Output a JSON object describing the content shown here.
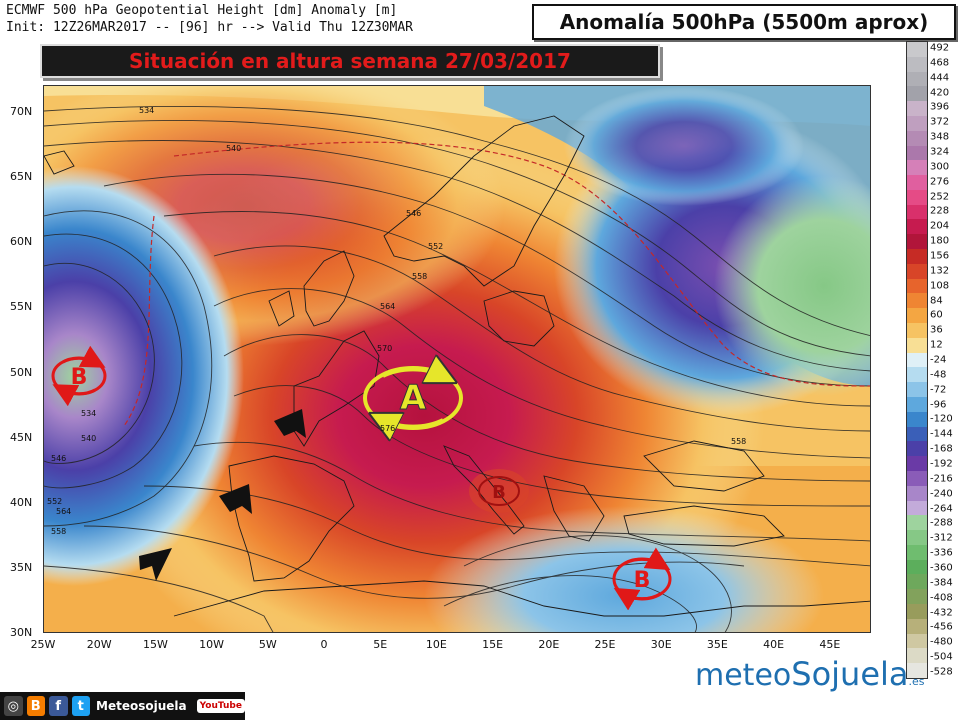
{
  "header": {
    "line1": "ECMWF 500 hPa Geopotential Height [dm] Anomaly [m]",
    "line2": "Init: 12Z26MAR2017 -- [96] hr --> Valid Thu 12Z30MAR"
  },
  "title": "Anomalía 500hPa (5500m aprox)",
  "subtitle": "Situación en altura semana 27/03/2017",
  "map": {
    "lat_labels": [
      "70N",
      "65N",
      "60N",
      "55N",
      "50N",
      "45N",
      "40N",
      "35N",
      "30N"
    ],
    "lon_labels": [
      "25W",
      "20W",
      "15W",
      "10W",
      "5W",
      "0",
      "5E",
      "10E",
      "15E",
      "20E",
      "25E",
      "30E",
      "35E",
      "40E",
      "45E"
    ],
    "contour_labels": [
      "534",
      "540",
      "546",
      "552",
      "558",
      "564",
      "570",
      "576",
      "534",
      "540",
      "546",
      "552",
      "558",
      "564",
      "558"
    ],
    "systems": [
      {
        "label": "A",
        "kind": "high"
      },
      {
        "label": "B",
        "kind": "low-atlantic"
      },
      {
        "label": "B",
        "kind": "low-italy"
      },
      {
        "label": "B",
        "kind": "low-east-med"
      }
    ]
  },
  "colorbar": {
    "labels": [
      "492",
      "468",
      "444",
      "420",
      "396",
      "372",
      "348",
      "324",
      "300",
      "276",
      "252",
      "228",
      "204",
      "180",
      "156",
      "132",
      "108",
      "84",
      "60",
      "36",
      "12",
      "-24",
      "-48",
      "-72",
      "-96",
      "-120",
      "-144",
      "-168",
      "-192",
      "-216",
      "-240",
      "-264",
      "-288",
      "-312",
      "-336",
      "-360",
      "-384",
      "-408",
      "-432",
      "-456",
      "-480",
      "-504",
      "-528"
    ],
    "colors": [
      "#c9c9cc",
      "#bcbcc1",
      "#afafb5",
      "#a2a2aa",
      "#c9b3c9",
      "#bf9fbf",
      "#b48bb4",
      "#ab78ab",
      "#d580b8",
      "#e05f9f",
      "#e54b86",
      "#d9306b",
      "#c61b4f",
      "#b1153a",
      "#c62b25",
      "#d84528",
      "#e7642c",
      "#ef8533",
      "#f4a642",
      "#f6c363",
      "#f8df95",
      "#dff0f7",
      "#b5dcf0",
      "#8cc4e8",
      "#5ea8dd",
      "#3a86cc",
      "#3a5fb8",
      "#4b40a8",
      "#6a3aa6",
      "#8a5cb8",
      "#a886c9",
      "#c3abda",
      "#9ed39e",
      "#86c886",
      "#6fbd6f",
      "#5cae5c",
      "#6ea85c",
      "#82a25c",
      "#989c5c",
      "#b7b07a",
      "#cfc8a2",
      "#dcdac6",
      "#e6e6e0"
    ]
  },
  "footer": {
    "handle": "Meteosojuela",
    "youtube": "YouTube",
    "brand1": "meteo",
    "brand2": "Sojuela",
    "brand_suffix": ".es"
  }
}
